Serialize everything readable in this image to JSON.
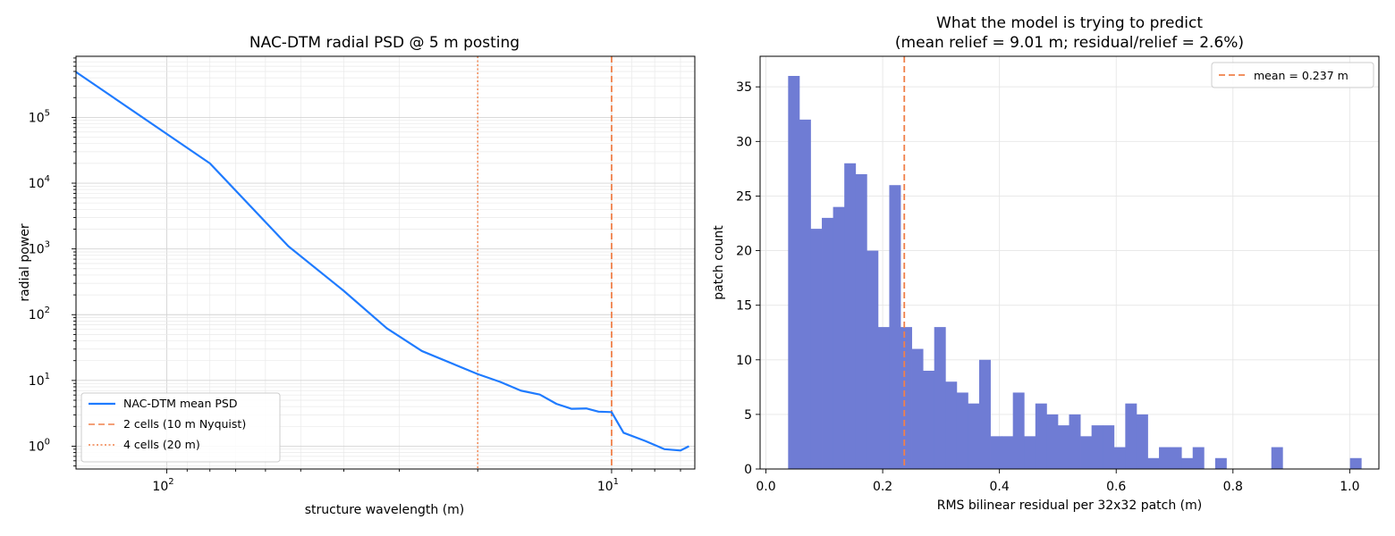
{
  "chart_data": [
    {
      "type": "line",
      "title": "NAC-DTM radial PSD @ 5 m posting",
      "xlabel": "structure wavelength (m)",
      "ylabel": "radial power",
      "x_scale": "log",
      "x_inverted": true,
      "y_scale": "log",
      "xlim": [
        6.5,
        160
      ],
      "ylim": [
        0.45,
        850000
      ],
      "x_major_ticks": [
        {
          "value": 100,
          "base": "10",
          "exp": "2"
        },
        {
          "value": 10,
          "base": "10",
          "exp": "1"
        }
      ],
      "y_major_ticks": [
        {
          "value": 1,
          "base": "10",
          "exp": "0"
        },
        {
          "value": 10,
          "base": "10",
          "exp": "1"
        },
        {
          "value": 100,
          "base": "10",
          "exp": "2"
        },
        {
          "value": 1000,
          "base": "10",
          "exp": "3"
        },
        {
          "value": 10000,
          "base": "10",
          "exp": "4"
        },
        {
          "value": 100000,
          "base": "10",
          "exp": "5"
        }
      ],
      "grid": true,
      "legend_position": "lower-left",
      "series": [
        {
          "name": "NAC-DTM mean PSD",
          "color": "#1f7bff",
          "style": "solid",
          "x": [
            160,
            80,
            53.3,
            40,
            32,
            26.7,
            20,
            17.8,
            16,
            14.5,
            13.3,
            12.3,
            11.4,
            10.7,
            10.0,
            9.4,
            8.4,
            7.6,
            7.0,
            6.7
          ],
          "y": [
            490000,
            20000,
            1100,
            230,
            62,
            28,
            12.5,
            9.5,
            7,
            6.1,
            4.4,
            3.7,
            3.75,
            3.35,
            3.3,
            1.6,
            1.2,
            0.9,
            0.86,
            1.0
          ]
        }
      ],
      "reference_lines": [
        {
          "name": "2 cells (10 m Nyquist)",
          "x": 10,
          "color": "#f0804a",
          "style": "dashed"
        },
        {
          "name": "4 cells (20 m)",
          "x": 20,
          "color": "#f0804a",
          "style": "dotted"
        }
      ]
    },
    {
      "type": "bar",
      "title": "What the model is trying to predict",
      "subtitle": "(mean relief = 9.01 m; residual/relief = 2.6%)",
      "xlabel": "RMS bilinear residual per 32x32 patch (m)",
      "ylabel": "patch count",
      "xlim": [
        -0.01,
        1.05
      ],
      "ylim": [
        0,
        37.8
      ],
      "x_ticks": [
        0.0,
        0.2,
        0.4,
        0.6,
        0.8,
        1.0
      ],
      "x_tick_labels": [
        "0.0",
        "0.2",
        "0.4",
        "0.6",
        "0.8",
        "1.0"
      ],
      "y_ticks": [
        0,
        5,
        10,
        15,
        20,
        25,
        30,
        35
      ],
      "grid": true,
      "legend_position": "top-right",
      "bar_color": "#6f7cd4",
      "bin_start": 0.038,
      "bin_width": 0.01925,
      "values": [
        36,
        32,
        22,
        23,
        24,
        28,
        27,
        20,
        13,
        26,
        13,
        11,
        9,
        13,
        8,
        7,
        6,
        10,
        3,
        3,
        7,
        3,
        6,
        5,
        4,
        5,
        3,
        4,
        4,
        2,
        6,
        5,
        1,
        2,
        2,
        1,
        2,
        0,
        1,
        0,
        0,
        0,
        0,
        2,
        0,
        0,
        0,
        0,
        0,
        0,
        1
      ],
      "reference_lines": [
        {
          "name": "mean = 0.237 m",
          "x": 0.237,
          "color": "#f0804a",
          "style": "dashed"
        }
      ]
    }
  ]
}
